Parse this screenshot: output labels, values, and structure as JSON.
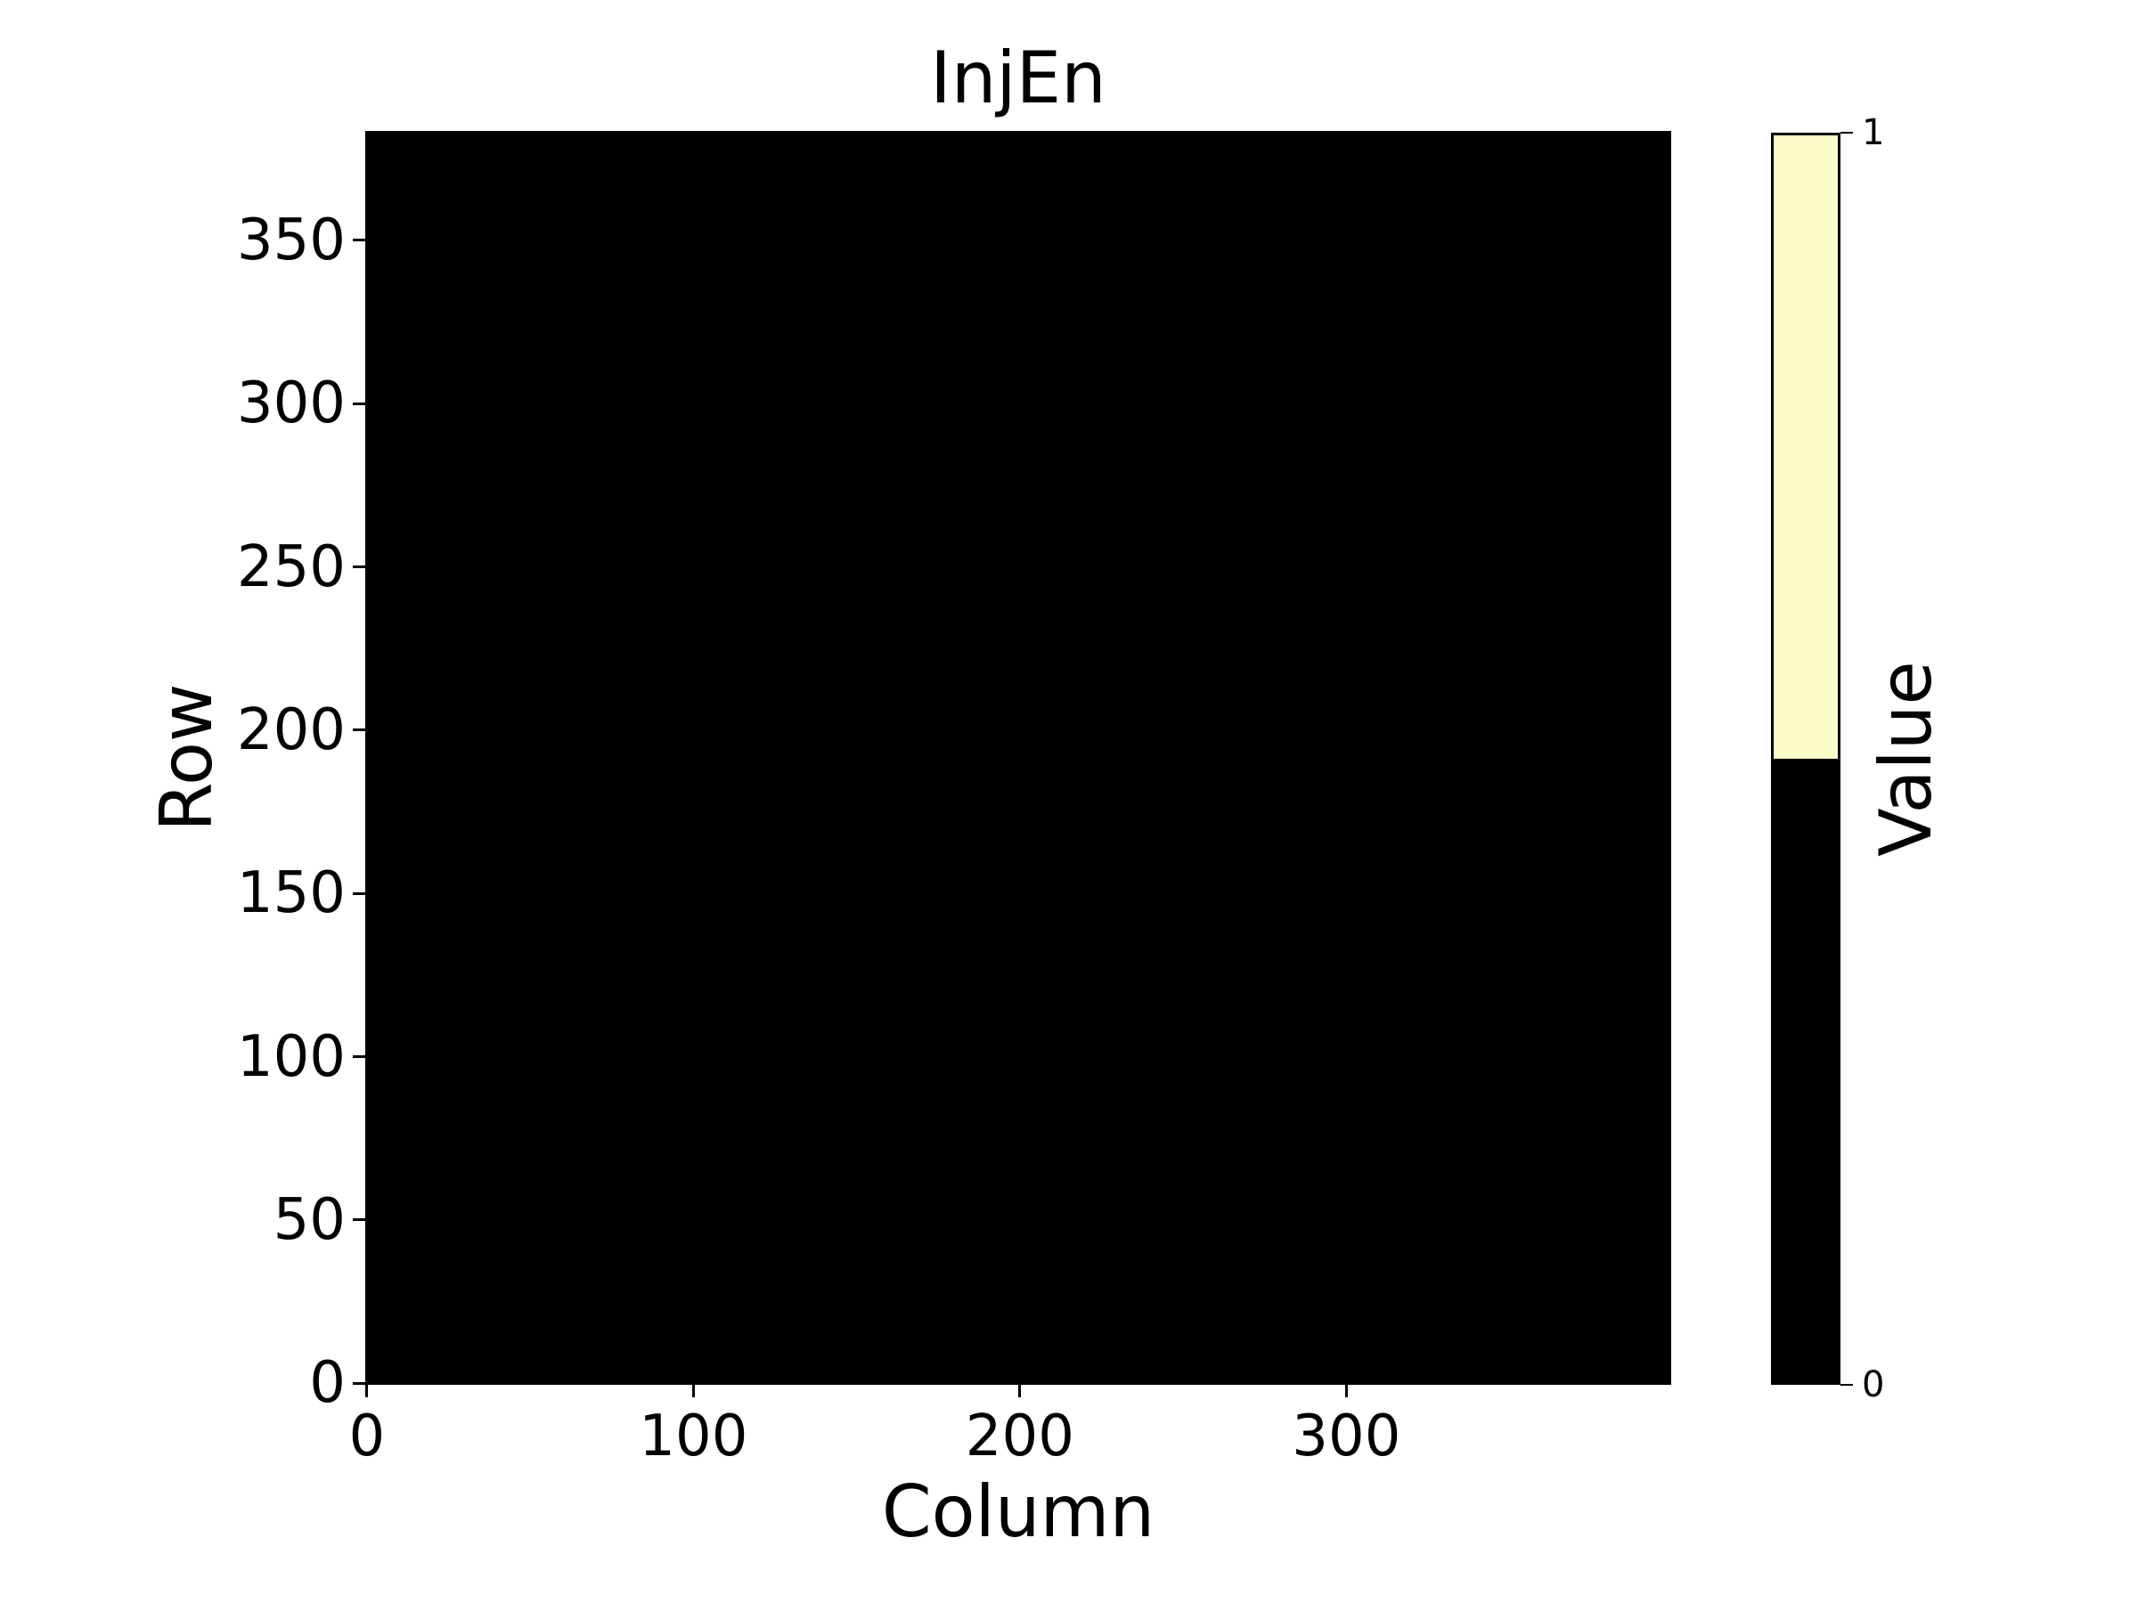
{
  "figure": {
    "background": "#ffffff"
  },
  "chart_data": {
    "type": "heatmap",
    "title": "InjEn",
    "xlabel": "Column",
    "ylabel": "Row",
    "colorbar_label": "Value",
    "n_cols": 400,
    "n_rows": 384,
    "xlim": [
      -0.5,
      399.5
    ],
    "ylim": [
      -0.5,
      383.5
    ],
    "x_ticks": [
      0,
      100,
      200,
      300
    ],
    "y_ticks": [
      0,
      50,
      100,
      150,
      200,
      250,
      300,
      350
    ],
    "values_uniform": 0,
    "values_description": "all 400x384 cells have value 0 (entire map rendered black)",
    "value_range": [
      0,
      1
    ],
    "colorbar_ticks": [
      0,
      1
    ],
    "colors": {
      "value_zero": "#000000",
      "value_one": "#FBFBC9",
      "axes_foreground": "#000000",
      "figure_background": "#ffffff"
    },
    "grid": false,
    "legend": false,
    "colorbar_position": "right"
  }
}
